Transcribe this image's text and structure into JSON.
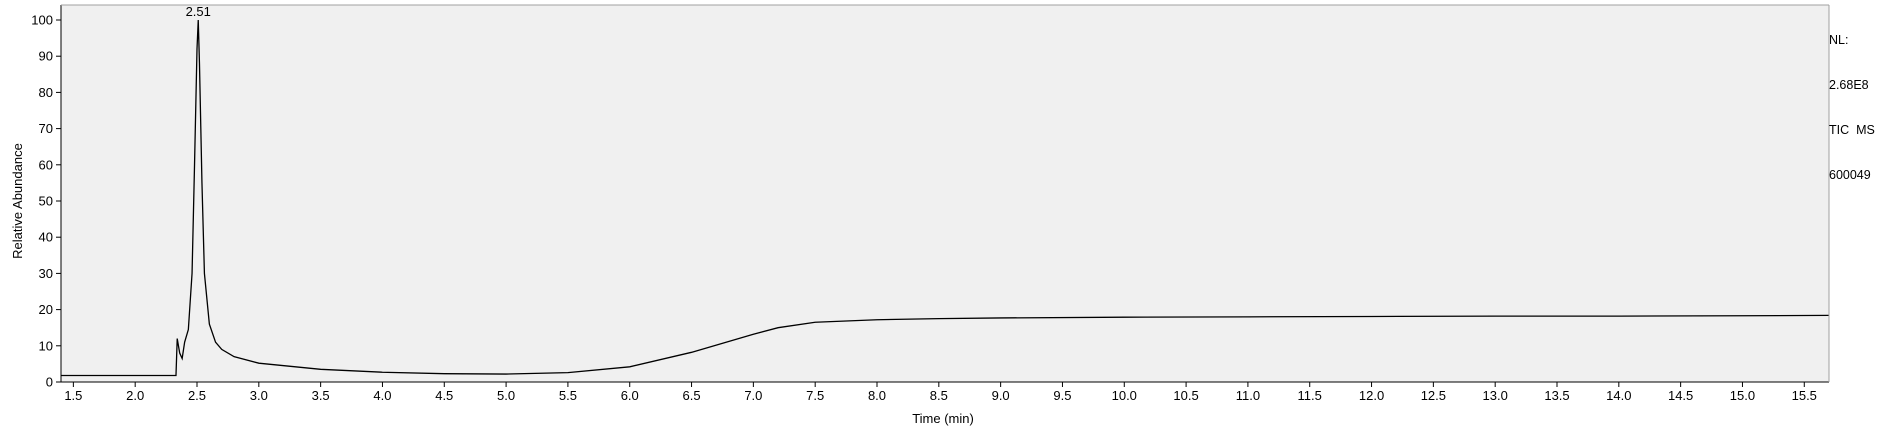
{
  "chart_data": {
    "type": "line",
    "xlabel": "Time (min)",
    "ylabel": "Relative Abundance",
    "xlim": [
      1.4,
      15.7
    ],
    "ylim": [
      0,
      100
    ],
    "x_ticks": [
      1.5,
      2.0,
      2.5,
      3.0,
      3.5,
      4.0,
      4.5,
      5.0,
      5.5,
      6.0,
      6.5,
      7.0,
      7.5,
      8.0,
      8.5,
      9.0,
      9.5,
      10.0,
      10.5,
      11.0,
      11.5,
      12.0,
      12.5,
      13.0,
      13.5,
      14.0,
      14.5,
      15.0,
      15.5
    ],
    "x_tick_labels": [
      "1.5",
      "2.0",
      "2.5",
      "3.0",
      "3.5",
      "4.0",
      "4.5",
      "5.0",
      "5.5",
      "6.0",
      "6.5",
      "7.0",
      "7.5",
      "8.0",
      "8.5",
      "9.0",
      "9.5",
      "10.0",
      "10.5",
      "11.0",
      "11.5",
      "12.0",
      "12.5",
      "13.0",
      "13.5",
      "14.0",
      "14.5",
      "15.0",
      "15.5"
    ],
    "y_ticks": [
      0,
      10,
      20,
      30,
      40,
      50,
      60,
      70,
      80,
      90,
      100
    ],
    "y_tick_labels": [
      "0",
      "10",
      "20",
      "30",
      "40",
      "50",
      "60",
      "70",
      "80",
      "90",
      "100"
    ],
    "grid": false,
    "series": [
      {
        "color": "#000000",
        "x": [
          1.4,
          1.5,
          2.0,
          2.3,
          2.33,
          2.34,
          2.36,
          2.38,
          2.4,
          2.43,
          2.46,
          2.48,
          2.5,
          2.51,
          2.52,
          2.54,
          2.56,
          2.6,
          2.65,
          2.7,
          2.8,
          3.0,
          3.5,
          4.0,
          4.5,
          5.0,
          5.5,
          6.0,
          6.5,
          7.0,
          7.2,
          7.5,
          8.0,
          8.5,
          9.0,
          10.0,
          11.0,
          12.0,
          13.0,
          14.0,
          15.0,
          15.7
        ],
        "y": [
          1.8,
          1.8,
          1.8,
          1.8,
          1.8,
          12.0,
          8.0,
          6.5,
          11.0,
          14.5,
          30.0,
          60.0,
          92.0,
          100.0,
          88.0,
          55.0,
          30.0,
          16.0,
          11.0,
          9.0,
          7.0,
          5.2,
          3.5,
          2.7,
          2.3,
          2.2,
          2.6,
          4.2,
          8.2,
          13.2,
          15.0,
          16.5,
          17.2,
          17.5,
          17.7,
          17.9,
          18.0,
          18.1,
          18.2,
          18.2,
          18.3,
          18.4
        ]
      }
    ],
    "annotations": [
      {
        "x": 2.51,
        "y": 100,
        "text": "2.51"
      }
    ]
  },
  "info": {
    "lines": [
      "NL:",
      "2.68E8",
      "TIC  MS",
      "600049"
    ]
  }
}
